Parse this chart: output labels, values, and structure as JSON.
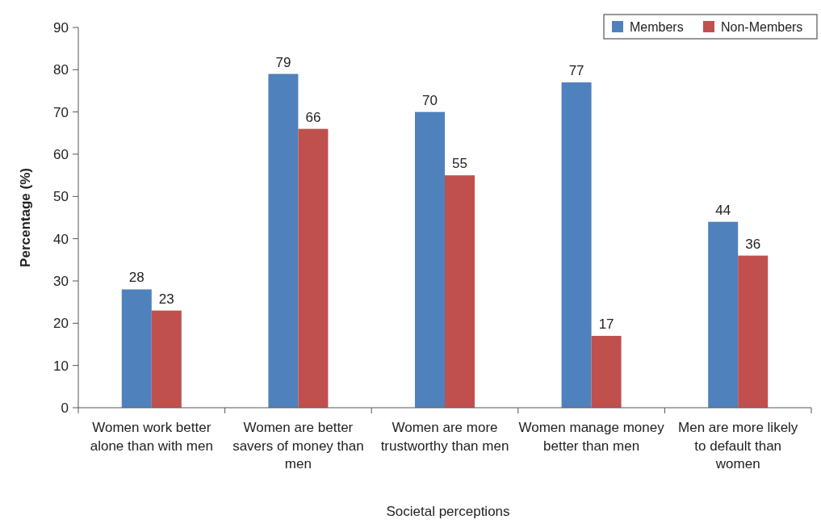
{
  "chart_data": {
    "type": "bar",
    "xlabel": "Societal perceptions",
    "ylabel": "Percentage (%)",
    "categories": [
      "Women work better alone than with men",
      "Women are better savers of money than men",
      "Women are more trustworthy than men",
      "Women manage money better than men",
      "Men are more likely to default than women"
    ],
    "series": [
      {
        "name": "Members",
        "color": "#4f81bd",
        "values": [
          28,
          79,
          70,
          77,
          44
        ]
      },
      {
        "name": "Non-Members",
        "color": "#c0504d",
        "values": [
          23,
          66,
          55,
          17,
          36
        ]
      }
    ],
    "ylim": [
      0,
      90
    ],
    "yticks": [
      0,
      10,
      20,
      30,
      40,
      50,
      60,
      70,
      80,
      90
    ],
    "data_labels": true,
    "legend": "top right",
    "grid": false
  }
}
